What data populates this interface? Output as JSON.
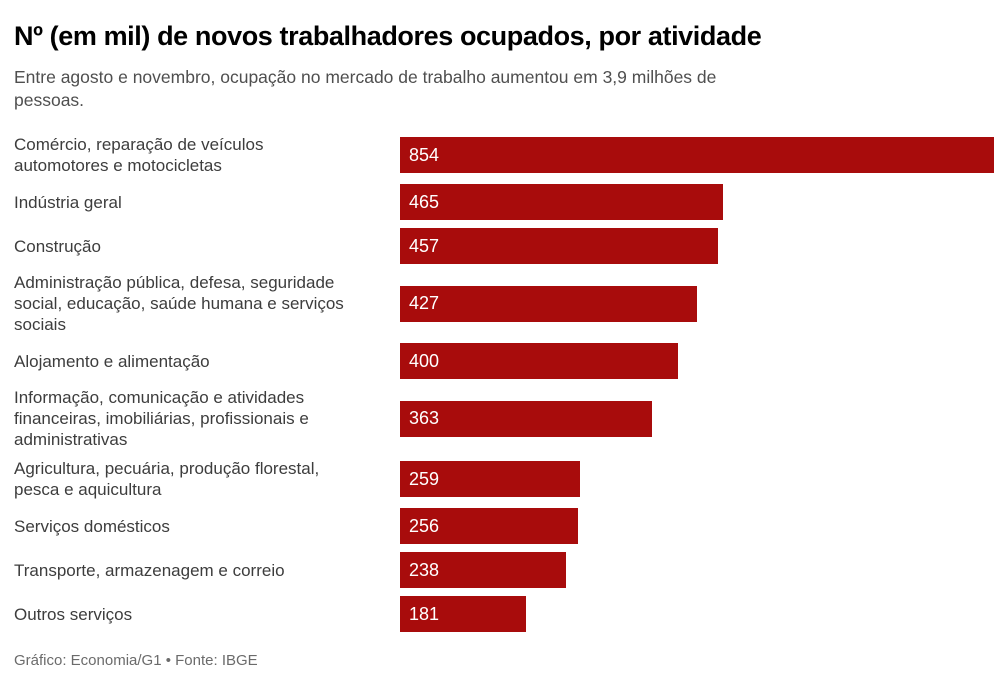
{
  "page": {
    "title": "Nº (em mil) de novos trabalhadores ocupados, por atividade",
    "subtitle": "Entre agosto e novembro, ocupação no mercado de trabalho aumentou em 3,9 milhões de\npessoas.",
    "credit": "Gráfico: Economia/G1 • Fonte: IBGE"
  },
  "colors": {
    "bar": "#a80c0c",
    "bar_value_text": "#ffffff",
    "title_text": "#000000",
    "subtitle_text": "#4f4f4f",
    "label_text": "#3d3d3d",
    "credit_text": "#6b6b6b"
  },
  "chart_data": {
    "type": "bar",
    "orientation": "horizontal",
    "title": "Nº (em mil) de novos trabalhadores ocupados, por atividade",
    "subtitle": "Entre agosto e novembro, ocupação no mercado de trabalho aumentou em 3,9 milhões de pessoas.",
    "source": "Gráfico: Economia/G1 • Fonte: IBGE",
    "unit": "mil pessoas",
    "xlim": [
      0,
      854
    ],
    "grid": false,
    "legend": false,
    "value_labels": "inside-bar-left",
    "categories": [
      "Comércio, reparação de veículos\nautomotores e motocicletas",
      "Indústria geral",
      "Construção",
      "Administração pública, defesa, seguridade\nsocial, educação, saúde humana e serviços\nsociais",
      "Alojamento e alimentação",
      "Informação, comunicação e atividades\nfinanceiras, imobiliárias, profissionais e\nadministrativas",
      "Agricultura, pecuária, produção florestal,\npesca e aquicultura",
      "Serviços domésticos",
      "Transporte, armazenagem e correio",
      "Outros serviços"
    ],
    "values": [
      854,
      465,
      457,
      427,
      400,
      363,
      259,
      256,
      238,
      181
    ]
  }
}
